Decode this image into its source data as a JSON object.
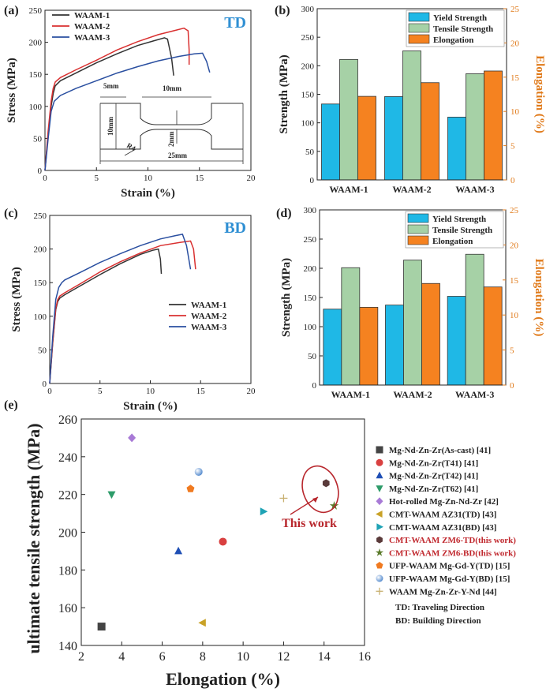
{
  "chart_data": [
    {
      "panel_label": "(a)",
      "type": "line",
      "tag": "TD",
      "xlabel": "Strain (%)",
      "ylabel": "Stress (MPa)",
      "xlim": [
        0,
        20
      ],
      "ylim": [
        0,
        250
      ],
      "xticks": [
        "0",
        "5",
        "10",
        "15",
        "20"
      ],
      "yticks": [
        "0",
        "50",
        "100",
        "150",
        "200",
        "250"
      ],
      "legend_position": "top-left",
      "inset": {
        "labels": [
          "5mm",
          "10mm",
          "10mm",
          "2mm",
          "25mm",
          "R4"
        ]
      },
      "series": [
        {
          "name": "WAAM-1",
          "color": "#333333",
          "points": [
            [
              0,
              0
            ],
            [
              0.3,
              55
            ],
            [
              0.6,
              100
            ],
            [
              0.8,
              120
            ],
            [
              1.0,
              132
            ],
            [
              1.5,
              140
            ],
            [
              3,
              152
            ],
            [
              5,
              168
            ],
            [
              7,
              182
            ],
            [
              9,
              195
            ],
            [
              10.5,
              202
            ],
            [
              11.6,
              207
            ],
            [
              11.9,
              205
            ],
            [
              12.3,
              175
            ],
            [
              12.5,
              148
            ]
          ]
        },
        {
          "name": "WAAM-2",
          "color": "#d93030",
          "points": [
            [
              0,
              0
            ],
            [
              0.3,
              60
            ],
            [
              0.6,
              108
            ],
            [
              0.8,
              128
            ],
            [
              1.0,
              138
            ],
            [
              1.5,
              145
            ],
            [
              3,
              157
            ],
            [
              5,
              172
            ],
            [
              7,
              188
            ],
            [
              9,
              201
            ],
            [
              11,
              212
            ],
            [
              12.5,
              218
            ],
            [
              13.5,
              222
            ],
            [
              13.9,
              218
            ],
            [
              14.0,
              188
            ],
            [
              14.0,
              165
            ]
          ]
        },
        {
          "name": "WAAM-3",
          "color": "#2a4fa0",
          "points": [
            [
              0,
              0
            ],
            [
              0.3,
              48
            ],
            [
              0.6,
              92
            ],
            [
              0.9,
              108
            ],
            [
              1.5,
              117
            ],
            [
              3,
              128
            ],
            [
              5,
              140
            ],
            [
              7,
              152
            ],
            [
              9,
              162
            ],
            [
              11,
              171
            ],
            [
              13,
              178
            ],
            [
              14.5,
              182
            ],
            [
              15.3,
              183
            ],
            [
              15.7,
              170
            ],
            [
              16.0,
              153
            ]
          ]
        }
      ]
    },
    {
      "panel_label": "(b)",
      "type": "bar",
      "categories": [
        "WAAM-1",
        "WAAM-2",
        "WAAM-3"
      ],
      "ylabel": "Strength (MPa)",
      "y2label": "Elongation (%)",
      "ylim": [
        0,
        300
      ],
      "y2lim": [
        0,
        25
      ],
      "yticks": [
        "0",
        "50",
        "100",
        "150",
        "200",
        "250",
        "300"
      ],
      "y2ticks": [
        "0",
        "5",
        "10",
        "15",
        "20",
        "25"
      ],
      "legend_position": "top-right",
      "series": [
        {
          "name": "Yield Strength",
          "color": "#1fb8e6",
          "axis": "left",
          "values": [
            133,
            146,
            110
          ]
        },
        {
          "name": "Tensile Strength",
          "color": "#a6d1a6",
          "axis": "left",
          "values": [
            211,
            226,
            186
          ]
        },
        {
          "name": "Elongation",
          "color": "#f58220",
          "axis": "right",
          "values": [
            12.2,
            14.2,
            15.9
          ]
        }
      ]
    },
    {
      "panel_label": "(c)",
      "type": "line",
      "tag": "BD",
      "xlabel": "Strain (%)",
      "ylabel": "Stress (MPa)",
      "xlim": [
        0,
        20
      ],
      "ylim": [
        0,
        250
      ],
      "xticks": [
        "0",
        "5",
        "10",
        "15",
        "20"
      ],
      "yticks": [
        "0",
        "50",
        "100",
        "150",
        "200",
        "250"
      ],
      "legend_position": "bottom-right",
      "series": [
        {
          "name": "WAAM-1",
          "color": "#333333",
          "points": [
            [
              0,
              0
            ],
            [
              0.3,
              60
            ],
            [
              0.6,
              110
            ],
            [
              0.8,
              122
            ],
            [
              1.0,
              127
            ],
            [
              1.5,
              132
            ],
            [
              3,
              145
            ],
            [
              5,
              162
            ],
            [
              7,
              178
            ],
            [
              9,
              192
            ],
            [
              10.2,
              198
            ],
            [
              10.8,
              200
            ],
            [
              11.0,
              185
            ],
            [
              11.1,
              163
            ]
          ]
        },
        {
          "name": "WAAM-2",
          "color": "#d93030",
          "points": [
            [
              0,
              0
            ],
            [
              0.3,
              62
            ],
            [
              0.6,
              112
            ],
            [
              0.8,
              125
            ],
            [
              1.0,
              130
            ],
            [
              1.5,
              135
            ],
            [
              3,
              148
            ],
            [
              5,
              166
            ],
            [
              7,
              181
            ],
            [
              9,
              194
            ],
            [
              11,
              205
            ],
            [
              13,
              210
            ],
            [
              14.0,
              212
            ],
            [
              14.3,
              200
            ],
            [
              14.5,
              170
            ]
          ]
        },
        {
          "name": "WAAM-3",
          "color": "#2a4fa0",
          "points": [
            [
              0,
              0
            ],
            [
              0.3,
              70
            ],
            [
              0.6,
              125
            ],
            [
              0.9,
              143
            ],
            [
              1.2,
              150
            ],
            [
              1.5,
              154
            ],
            [
              3,
              165
            ],
            [
              5,
              180
            ],
            [
              7,
              193
            ],
            [
              9,
              205
            ],
            [
              11,
              215
            ],
            [
              12.5,
              220
            ],
            [
              13.2,
              222
            ],
            [
              13.6,
              205
            ],
            [
              14.0,
              170
            ]
          ]
        }
      ]
    },
    {
      "panel_label": "(d)",
      "type": "bar",
      "categories": [
        "WAAM-1",
        "WAAM-2",
        "WAAM-3"
      ],
      "ylabel": "Strength (MPa)",
      "y2label": "Elongation (%)",
      "ylim": [
        0,
        300
      ],
      "y2lim": [
        0,
        25
      ],
      "yticks": [
        "0",
        "50",
        "100",
        "150",
        "200",
        "250",
        "300"
      ],
      "y2ticks": [
        "0",
        "5",
        "10",
        "15",
        "20",
        "25"
      ],
      "legend_position": "top-right",
      "series": [
        {
          "name": "Yield Strength",
          "color": "#1fb8e6",
          "axis": "left",
          "values": [
            130,
            137,
            152
          ]
        },
        {
          "name": "Tensile Strength",
          "color": "#a6d1a6",
          "axis": "left",
          "values": [
            201,
            214,
            224
          ]
        },
        {
          "name": "Elongation",
          "color": "#f58220",
          "axis": "right",
          "values": [
            11.1,
            14.5,
            14.0
          ]
        }
      ]
    },
    {
      "panel_label": "(e)",
      "type": "scatter",
      "xlabel": "Elongation (%)",
      "ylabel": "ultimate tensile strength (MPa)",
      "xlim": [
        2,
        16
      ],
      "ylim": [
        140,
        260
      ],
      "xticks": [
        "2",
        "4",
        "6",
        "8",
        "10",
        "12",
        "14",
        "16"
      ],
      "yticks": [
        "140",
        "160",
        "180",
        "200",
        "220",
        "240",
        "260"
      ],
      "annotation": "This work",
      "legend_notes": [
        "TD: Traveling Direction",
        "BD: Building Direction"
      ],
      "series": [
        {
          "name": "Mg-Nd-Zn-Zr(As-cast) [41]",
          "marker": "square",
          "color": "#444444",
          "label_color": "#222222",
          "x": 3.0,
          "y": 150
        },
        {
          "name": "Mg-Nd-Zn-Zr(T41) [41]",
          "marker": "circle",
          "color": "#d94040",
          "label_color": "#222222",
          "x": 9.0,
          "y": 195
        },
        {
          "name": "Mg-Nd-Zn-Zr(T42) [41]",
          "marker": "triangle-up",
          "color": "#1f4fb5",
          "label_color": "#222222",
          "x": 6.8,
          "y": 190
        },
        {
          "name": "Mg-Nd-Zn-Zr(T62) [41]",
          "marker": "triangle-down",
          "color": "#2e9c6a",
          "label_color": "#222222",
          "x": 3.5,
          "y": 220
        },
        {
          "name": "Hot-rolled Mg-Zn-Nd-Zr [42]",
          "marker": "diamond",
          "color": "#a87ad6",
          "label_color": "#222222",
          "x": 4.5,
          "y": 250
        },
        {
          "name": "CMT-WAAM AZ31(TD) [43]",
          "marker": "triangle-left",
          "color": "#c9a227",
          "label_color": "#222222",
          "x": 8.0,
          "y": 152
        },
        {
          "name": "CMT-WAAM AZ31(BD) [43]",
          "marker": "triangle-right",
          "color": "#1fa3b5",
          "label_color": "#222222",
          "x": 11.0,
          "y": 211
        },
        {
          "name": "CMT-WAAM ZM6-TD(this work)",
          "marker": "hexagon",
          "color": "#5a3a3a",
          "label_color": "#c0272d",
          "x": 14.1,
          "y": 226
        },
        {
          "name": "CMT-WAAM ZM6-BD(this work)",
          "marker": "star",
          "color": "#5a7a2a",
          "label_color": "#c0272d",
          "x": 14.5,
          "y": 214
        },
        {
          "name": "UFP-WAAM Mg-Gd-Y(TD) [15]",
          "marker": "pentagon",
          "color": "#f07a20",
          "label_color": "#222222",
          "x": 7.4,
          "y": 223
        },
        {
          "name": "UFP-WAAM Mg-Gd-Y(BD) [15]",
          "marker": "sphere",
          "color": "#6fa0d8",
          "label_color": "#222222",
          "x": 7.8,
          "y": 232
        },
        {
          "name": "WAAM Mg-Zn-Zr-Y-Nd [44]",
          "marker": "plus",
          "color": "#c8b070",
          "label_color": "#222222",
          "x": 12.0,
          "y": 218
        }
      ]
    }
  ]
}
